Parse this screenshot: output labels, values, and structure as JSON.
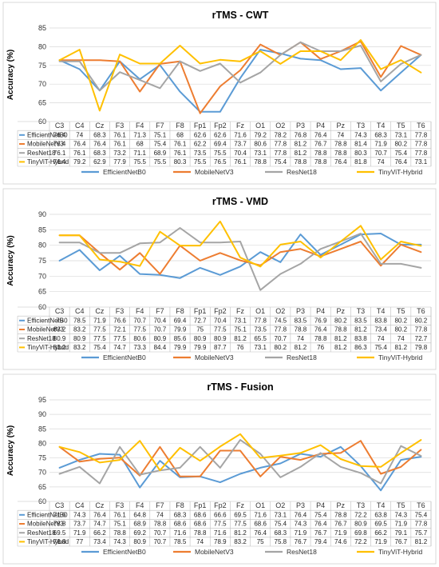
{
  "chart_data": [
    {
      "type": "line",
      "title": "rTMS - CWT",
      "ylabel": "Accuracy (%)",
      "ylim": [
        60,
        85
      ],
      "yticks": [
        60,
        65,
        70,
        75,
        80,
        85
      ],
      "grid": true,
      "legend": "bottom",
      "categories": [
        "C3",
        "C4",
        "Cz",
        "F3",
        "F4",
        "F7",
        "F8",
        "Fp1",
        "Fp2",
        "Fz",
        "O1",
        "O2",
        "P3",
        "P4",
        "Pz",
        "T3",
        "T4",
        "T5",
        "T6"
      ],
      "series": [
        {
          "name": "EfficientNetB0",
          "color": "#5b9bd5",
          "values": [
            76.4,
            74,
            68.3,
            76.1,
            71.3,
            75.1,
            68,
            62.6,
            62.6,
            71.6,
            79.2,
            78.2,
            76.8,
            76.4,
            74,
            74.3,
            68.3,
            73.1,
            77.8
          ]
        },
        {
          "name": "MobileNetV3",
          "color": "#ed7d31",
          "values": [
            76.4,
            76.4,
            76.4,
            76.1,
            68,
            75.4,
            76.1,
            62.2,
            69.4,
            73.7,
            80.6,
            77.8,
            81.2,
            76.7,
            78.8,
            81.4,
            71.9,
            80.2,
            77.8
          ]
        },
        {
          "name": "ResNet18",
          "color": "#a5a5a5",
          "values": [
            76.1,
            76.1,
            68.3,
            73.2,
            71.1,
            68.9,
            76.1,
            73.5,
            75.5,
            70.4,
            73.1,
            77.8,
            81.2,
            78.8,
            78.8,
            80.3,
            70.7,
            75.4,
            77.8
          ]
        },
        {
          "name": "TinyViT-Hybrid",
          "color": "#ffc000",
          "values": [
            76.4,
            79.2,
            62.9,
            77.9,
            75.5,
            75.5,
            80.3,
            75.5,
            76.5,
            76.1,
            78.8,
            75.4,
            78.8,
            78.8,
            76.4,
            81.8,
            74,
            76.4,
            73.1
          ]
        }
      ]
    },
    {
      "type": "line",
      "title": "rTMS - VMD",
      "ylabel": "Accuracy (%)",
      "ylim": [
        60,
        90
      ],
      "yticks": [
        60,
        65,
        70,
        75,
        80,
        85,
        90
      ],
      "grid": true,
      "legend": "bottom",
      "categories": [
        "C3",
        "C4",
        "Cz",
        "F3",
        "F4",
        "F7",
        "F8",
        "Fp1",
        "Fp2",
        "Fz",
        "O1",
        "O2",
        "P3",
        "P4",
        "Pz",
        "T3",
        "T4",
        "T5",
        "T6"
      ],
      "series": [
        {
          "name": "EfficientNetB0",
          "color": "#5b9bd5",
          "values": [
            75,
            78.5,
            71.9,
            76.6,
            70.7,
            70.4,
            69.4,
            72.7,
            70.4,
            73.1,
            77.8,
            74.5,
            83.5,
            76.9,
            80.2,
            83.5,
            83.8,
            80.2,
            80.2
          ]
        },
        {
          "name": "MobileNetV3",
          "color": "#ed7d31",
          "values": [
            83.2,
            83.2,
            77.5,
            72.1,
            77.5,
            70.7,
            79.9,
            75,
            77.5,
            75.1,
            73.5,
            77.8,
            78.8,
            76.4,
            78.8,
            81.2,
            73.4,
            80.2,
            77.8
          ]
        },
        {
          "name": "ResNet18",
          "color": "#a5a5a5",
          "values": [
            80.9,
            80.9,
            77.5,
            77.5,
            80.6,
            80.9,
            85.6,
            80.9,
            80.9,
            81.2,
            65.5,
            70.7,
            74,
            78.8,
            81.2,
            83.8,
            74,
            74,
            72.7
          ]
        },
        {
          "name": "TinyViT-Hybrid",
          "color": "#ffc000",
          "values": [
            83.2,
            83.2,
            75.4,
            74.7,
            73.3,
            84.4,
            79.9,
            79.9,
            87.7,
            76,
            73.1,
            80.2,
            81.2,
            76,
            81.2,
            86.3,
            75.4,
            81.2,
            79.8
          ]
        }
      ]
    },
    {
      "type": "line",
      "title": "rTMS - Fusion",
      "ylabel": "Accuracy (%)",
      "ylim": [
        60,
        95
      ],
      "yticks": [
        60,
        65,
        70,
        75,
        80,
        85,
        90,
        95
      ],
      "grid": true,
      "legend": "bottom",
      "categories": [
        "C3",
        "C4",
        "Cz",
        "F3",
        "F4",
        "F7",
        "F8",
        "Fp1",
        "Fp2",
        "Fz",
        "O1",
        "O2",
        "P3",
        "P4",
        "Pz",
        "T3",
        "T4",
        "T5",
        "T6"
      ],
      "series": [
        {
          "name": "EfficientNetB0",
          "color": "#5b9bd5",
          "values": [
            71.6,
            74.3,
            76.4,
            76.1,
            64.8,
            74,
            68.3,
            68.6,
            66.6,
            69.5,
            71.6,
            73.1,
            76.4,
            75.4,
            78.8,
            72.2,
            63.8,
            74.3,
            75.4
          ]
        },
        {
          "name": "MobileNetV3",
          "color": "#ed7d31",
          "values": [
            78.8,
            73.7,
            74.7,
            75.1,
            68.9,
            78.8,
            68.6,
            68.6,
            77.5,
            77.5,
            68.6,
            75.4,
            74.3,
            76.4,
            76.7,
            80.9,
            69.5,
            71.9,
            77.8
          ]
        },
        {
          "name": "ResNet18",
          "color": "#a5a5a5",
          "values": [
            69.5,
            71.9,
            66.2,
            78.8,
            69.2,
            70.7,
            71.6,
            78.8,
            71.6,
            81.2,
            76.4,
            68.3,
            71.9,
            76.7,
            71.9,
            69.8,
            66.2,
            79.1,
            75.7
          ]
        },
        {
          "name": "TinyViT-Hybrid",
          "color": "#ffc000",
          "values": [
            78.8,
            77,
            73.4,
            74.3,
            80.9,
            70.7,
            78.5,
            74,
            78.9,
            83.2,
            75,
            75.8,
            76.7,
            79.4,
            74.6,
            72.2,
            71.9,
            76.7,
            81.2
          ]
        }
      ]
    }
  ]
}
